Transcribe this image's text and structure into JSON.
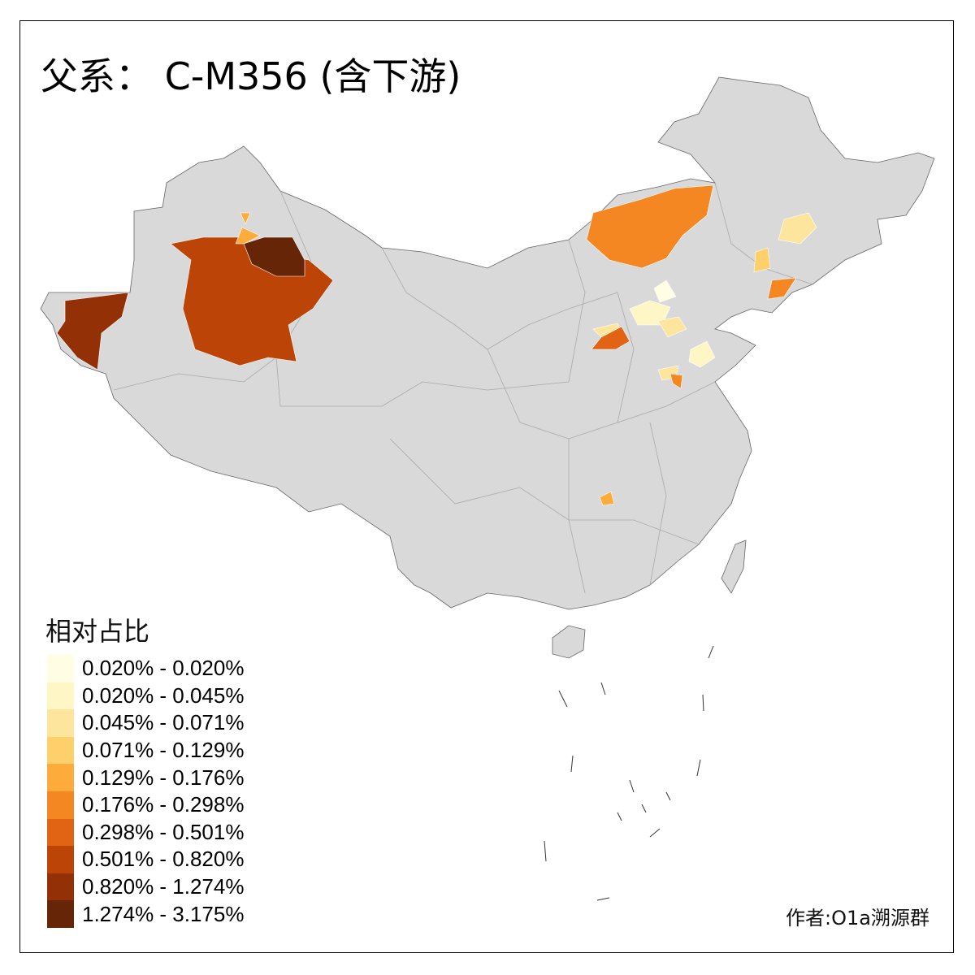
{
  "title": "父系： C-M356 (含下游)",
  "legend": {
    "title": "相对占比",
    "items": [
      {
        "label": "0.020% - 0.020%",
        "color": "#FFFDE4"
      },
      {
        "label": "0.020% - 0.045%",
        "color": "#FFF6C6"
      },
      {
        "label": "0.045% - 0.071%",
        "color": "#FEE59D"
      },
      {
        "label": "0.071% - 0.129%",
        "color": "#FED06B"
      },
      {
        "label": "0.129% - 0.176%",
        "color": "#FDAC3B"
      },
      {
        "label": "0.176% - 0.298%",
        "color": "#F48722"
      },
      {
        "label": "0.298% - 0.501%",
        "color": "#E06413"
      },
      {
        "label": "0.501% - 0.820%",
        "color": "#BD4407"
      },
      {
        "label": "0.820% - 1.274%",
        "color": "#933005"
      },
      {
        "label": "1.274% - 3.175%",
        "color": "#662506"
      }
    ]
  },
  "base_color": "#D9D9D9",
  "credit": "作者:O1a溯源群"
}
